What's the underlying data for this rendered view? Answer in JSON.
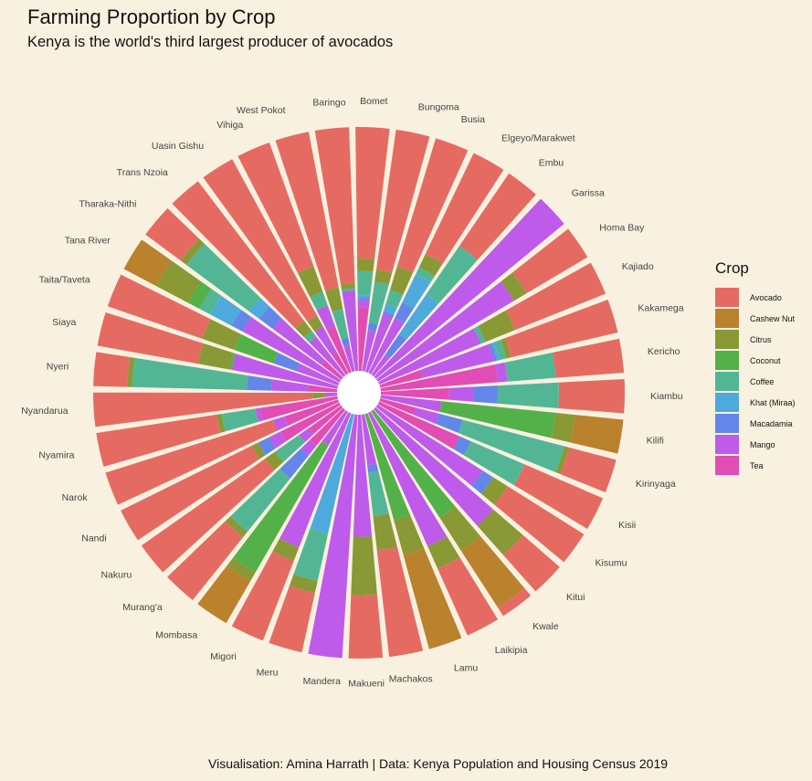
{
  "chart_data": {
    "type": "bar",
    "layout": "stacked-polar-proportion",
    "title": "Farming Proportion by Crop",
    "subtitle": "Kenya is the world's third largest producer of avocados",
    "caption": "Visualisation: Amina Harrath | Data: Kenya Population and Housing Census 2019",
    "legend_title": "Crop",
    "legend_position": "right",
    "grid": false,
    "series": [
      {
        "name": "Avocado",
        "color": "#E56B62"
      },
      {
        "name": "Cashew Nut",
        "color": "#BA822D"
      },
      {
        "name": "Citrus",
        "color": "#889935"
      },
      {
        "name": "Coconut",
        "color": "#53B149"
      },
      {
        "name": "Coffee",
        "color": "#52B695"
      },
      {
        "name": "Khat (Miraa)",
        "color": "#4EA9DC"
      },
      {
        "name": "Macadamia",
        "color": "#6287E9"
      },
      {
        "name": "Mango",
        "color": "#BE5BEA"
      },
      {
        "name": "Tea",
        "color": "#E14CB5"
      }
    ],
    "data": [
      {
        "county": "Baringo",
        "values": [
          0.64,
          0,
          0.02,
          0,
          0.01,
          0,
          0,
          0.33,
          0
        ]
      },
      {
        "county": "Bomet",
        "values": [
          0.54,
          0,
          0.05,
          0,
          0.1,
          0.01,
          0.01,
          0.03,
          0.26
        ]
      },
      {
        "county": "Bungoma",
        "values": [
          0.58,
          0,
          0.05,
          0,
          0.17,
          0,
          0.03,
          0.17,
          0
        ]
      },
      {
        "county": "Busia",
        "values": [
          0.55,
          0,
          0.1,
          0,
          0.06,
          0.03,
          0.01,
          0.25,
          0
        ]
      },
      {
        "county": "Elgeyo/Marakwet",
        "values": [
          0.46,
          0,
          0.06,
          0,
          0.03,
          0.13,
          0.07,
          0.25,
          0
        ]
      },
      {
        "county": "Embu",
        "values": [
          0.36,
          0,
          0,
          0,
          0.24,
          0.2,
          0.1,
          0.1,
          0
        ]
      },
      {
        "county": "Garissa",
        "values": [
          0,
          0,
          0,
          0,
          0,
          0,
          0,
          1.0,
          0
        ]
      },
      {
        "county": "Homa Bay",
        "values": [
          0.29,
          0,
          0.06,
          0,
          0,
          0,
          0,
          0.65,
          0
        ]
      },
      {
        "county": "Kajiado",
        "values": [
          0.4,
          0,
          0.13,
          0,
          0.02,
          0,
          0,
          0.45,
          0
        ]
      },
      {
        "county": "Kakamega",
        "values": [
          0.45,
          0,
          0.02,
          0,
          0.03,
          0.01,
          0.01,
          0.3,
          0.18
        ]
      },
      {
        "county": "Kericho",
        "values": [
          0.28,
          0,
          0,
          0,
          0.2,
          0,
          0,
          0.04,
          0.48
        ]
      },
      {
        "county": "Kiambu",
        "values": [
          0.27,
          0,
          0,
          0,
          0.25,
          0,
          0.1,
          0.1,
          0.28
        ]
      },
      {
        "county": "Kilifi",
        "values": [
          0,
          0.2,
          0.08,
          0.47,
          0,
          0,
          0,
          0.25,
          0
        ]
      },
      {
        "county": "Kirinyaga",
        "values": [
          0.2,
          0,
          0.02,
          0,
          0.43,
          0,
          0.1,
          0.1,
          0.15
        ]
      },
      {
        "county": "Kisii",
        "values": [
          0.35,
          0,
          0,
          0,
          0.24,
          0,
          0.05,
          0,
          0.36
        ]
      },
      {
        "county": "Kisumu",
        "values": [
          0.37,
          0,
          0.07,
          0,
          0,
          0,
          0.05,
          0.51,
          0
        ]
      },
      {
        "county": "Kitui",
        "values": [
          0.2,
          0,
          0.16,
          0,
          0,
          0,
          0,
          0.64,
          0
        ]
      },
      {
        "county": "Kwale",
        "values": [
          0.04,
          0.28,
          0.16,
          0.52,
          0,
          0,
          0,
          0,
          0
        ]
      },
      {
        "county": "Laikipia",
        "values": [
          0.3,
          0,
          0.1,
          0,
          0,
          0,
          0,
          0.6,
          0
        ]
      },
      {
        "county": "Lamu",
        "values": [
          0,
          0.4,
          0.15,
          0.45,
          0,
          0,
          0,
          0,
          0
        ]
      },
      {
        "county": "Machakos",
        "values": [
          0.44,
          0,
          0.14,
          0,
          0.18,
          0,
          0.03,
          0.21,
          0
        ]
      },
      {
        "county": "Makueni",
        "values": [
          0.26,
          0,
          0.24,
          0,
          0,
          0,
          0,
          0.5,
          0
        ]
      },
      {
        "county": "Mandera",
        "values": [
          0,
          0,
          0,
          0,
          0,
          0,
          0,
          1.0,
          0
        ]
      },
      {
        "county": "Meru",
        "values": [
          0.25,
          0,
          0.05,
          0,
          0.2,
          0.5,
          0,
          0,
          0
        ]
      },
      {
        "county": "Migori",
        "values": [
          0.35,
          0,
          0.06,
          0,
          0,
          0,
          0,
          0.59,
          0
        ]
      },
      {
        "county": "Mombasa",
        "values": [
          0,
          0.2,
          0.04,
          0.6,
          0,
          0,
          0,
          0.16,
          0
        ]
      },
      {
        "county": "Murang'a",
        "values": [
          0.33,
          0,
          0.03,
          0,
          0.28,
          0,
          0.12,
          0.05,
          0.19
        ]
      },
      {
        "county": "Nakuru",
        "values": [
          0.62,
          0,
          0.05,
          0,
          0.12,
          0,
          0,
          0.05,
          0.16
        ]
      },
      {
        "county": "Nandi",
        "values": [
          0.6,
          0,
          0.03,
          0,
          0,
          0,
          0.05,
          0.05,
          0.27
        ]
      },
      {
        "county": "Narok",
        "values": [
          0.72,
          0,
          0,
          0,
          0,
          0,
          0,
          0.05,
          0.23
        ]
      },
      {
        "county": "Nyamira",
        "values": [
          0.5,
          0,
          0.02,
          0,
          0.14,
          0,
          0,
          0.02,
          0.32
        ]
      },
      {
        "county": "Nyandarua",
        "values": [
          0.9,
          0,
          0.05,
          0,
          0,
          0,
          0,
          0.05,
          0
        ]
      },
      {
        "county": "Nyeri",
        "values": [
          0.14,
          0,
          0.02,
          0,
          0.47,
          0,
          0.1,
          0.15,
          0.12
        ]
      },
      {
        "county": "Siaya",
        "values": [
          0.42,
          0,
          0.13,
          0.01,
          0,
          0,
          0,
          0.44,
          0
        ]
      },
      {
        "county": "Taita/Taveta",
        "values": [
          0.41,
          0,
          0.14,
          0.17,
          0,
          0,
          0.1,
          0.18,
          0
        ]
      },
      {
        "county": "Tana River",
        "values": [
          0,
          0.15,
          0.15,
          0.05,
          0.05,
          0.1,
          0.05,
          0.45,
          0
        ]
      },
      {
        "county": "Tharaka-Nithi",
        "values": [
          0.18,
          0,
          0.03,
          0,
          0.32,
          0.05,
          0.07,
          0.25,
          0.1
        ]
      },
      {
        "county": "Trans Nzoia",
        "values": [
          0.72,
          0,
          0.05,
          0,
          0.03,
          0,
          0,
          0.2,
          0
        ]
      },
      {
        "county": "Uasin Gishu",
        "values": [
          0.73,
          0,
          0.05,
          0,
          0,
          0,
          0,
          0.12,
          0.1
        ]
      },
      {
        "county": "Vihiga",
        "values": [
          0.54,
          0,
          0.11,
          0,
          0.06,
          0,
          0,
          0.09,
          0.2
        ]
      },
      {
        "county": "West Pokot",
        "values": [
          0.65,
          0,
          0.09,
          0,
          0.12,
          0,
          0.03,
          0.11,
          0
        ]
      }
    ]
  }
}
